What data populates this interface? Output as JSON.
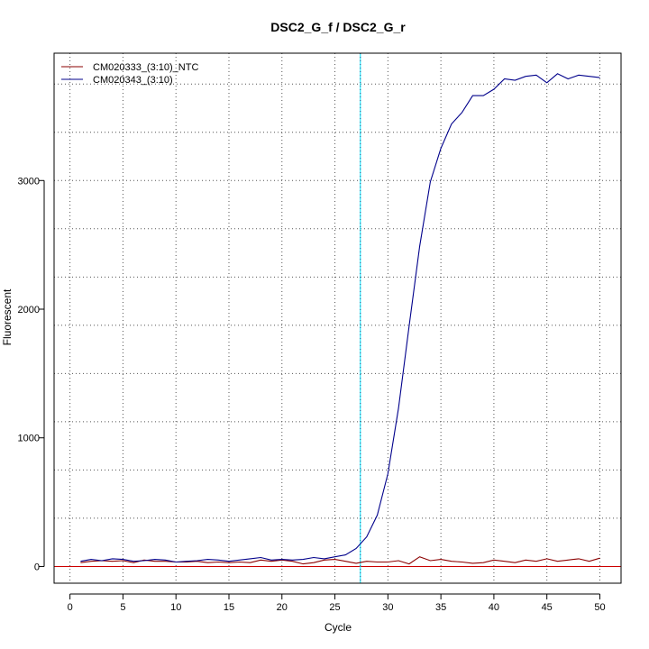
{
  "chart_data": {
    "type": "line",
    "title": "DSC2_G_f / DSC2_G_r",
    "xlabel": "Cycle",
    "ylabel": "Fluorescent",
    "xlim": [
      -1.5,
      52
    ],
    "ylim": [
      -130,
      3990
    ],
    "xticks": [
      "0",
      "5",
      "10",
      "15",
      "20",
      "25",
      "30",
      "35",
      "40",
      "45",
      "50"
    ],
    "yticks": [
      "0",
      "1000",
      "2000",
      "3000"
    ],
    "grid": true,
    "legend_position": "top-left",
    "threshold_cycle": 27.4,
    "threshold_color": "#00e5ff",
    "baseline_color": "#cc0000",
    "series": [
      {
        "name": "CM020333_(3:10)_NTC",
        "color": "#8b0000",
        "x": [
          1,
          2,
          3,
          4,
          5,
          6,
          7,
          8,
          9,
          10,
          11,
          12,
          13,
          14,
          15,
          16,
          17,
          18,
          19,
          20,
          21,
          22,
          23,
          24,
          25,
          26,
          27,
          28,
          29,
          30,
          31,
          32,
          33,
          34,
          35,
          36,
          37,
          38,
          39,
          40,
          41,
          42,
          43,
          44,
          45,
          46,
          47,
          48,
          49,
          50
        ],
        "y": [
          30,
          40,
          45,
          40,
          45,
          30,
          50,
          40,
          40,
          35,
          35,
          40,
          30,
          35,
          30,
          35,
          30,
          50,
          40,
          50,
          40,
          20,
          30,
          50,
          55,
          40,
          25,
          40,
          35,
          35,
          45,
          20,
          75,
          45,
          55,
          40,
          35,
          25,
          30,
          50,
          40,
          30,
          50,
          40,
          60,
          40,
          50,
          60,
          40,
          65
        ]
      },
      {
        "name": "CM020343_(3:10)",
        "color": "#00008b",
        "x": [
          1,
          2,
          3,
          4,
          5,
          6,
          7,
          8,
          9,
          10,
          11,
          12,
          13,
          14,
          15,
          16,
          17,
          18,
          19,
          20,
          21,
          22,
          23,
          24,
          25,
          26,
          27,
          28,
          29,
          30,
          31,
          32,
          33,
          34,
          35,
          36,
          37,
          38,
          39,
          40,
          41,
          42,
          43,
          44,
          45,
          46,
          47,
          48,
          49,
          50
        ],
        "y": [
          40,
          55,
          45,
          60,
          55,
          40,
          45,
          55,
          50,
          35,
          40,
          45,
          55,
          50,
          40,
          50,
          60,
          70,
          50,
          55,
          50,
          55,
          70,
          60,
          75,
          90,
          140,
          230,
          400,
          720,
          1230,
          1870,
          2490,
          2990,
          3250,
          3440,
          3530,
          3660,
          3660,
          3710,
          3790,
          3780,
          3810,
          3820,
          3760,
          3830,
          3790,
          3820,
          3810,
          3800
        ]
      }
    ]
  }
}
